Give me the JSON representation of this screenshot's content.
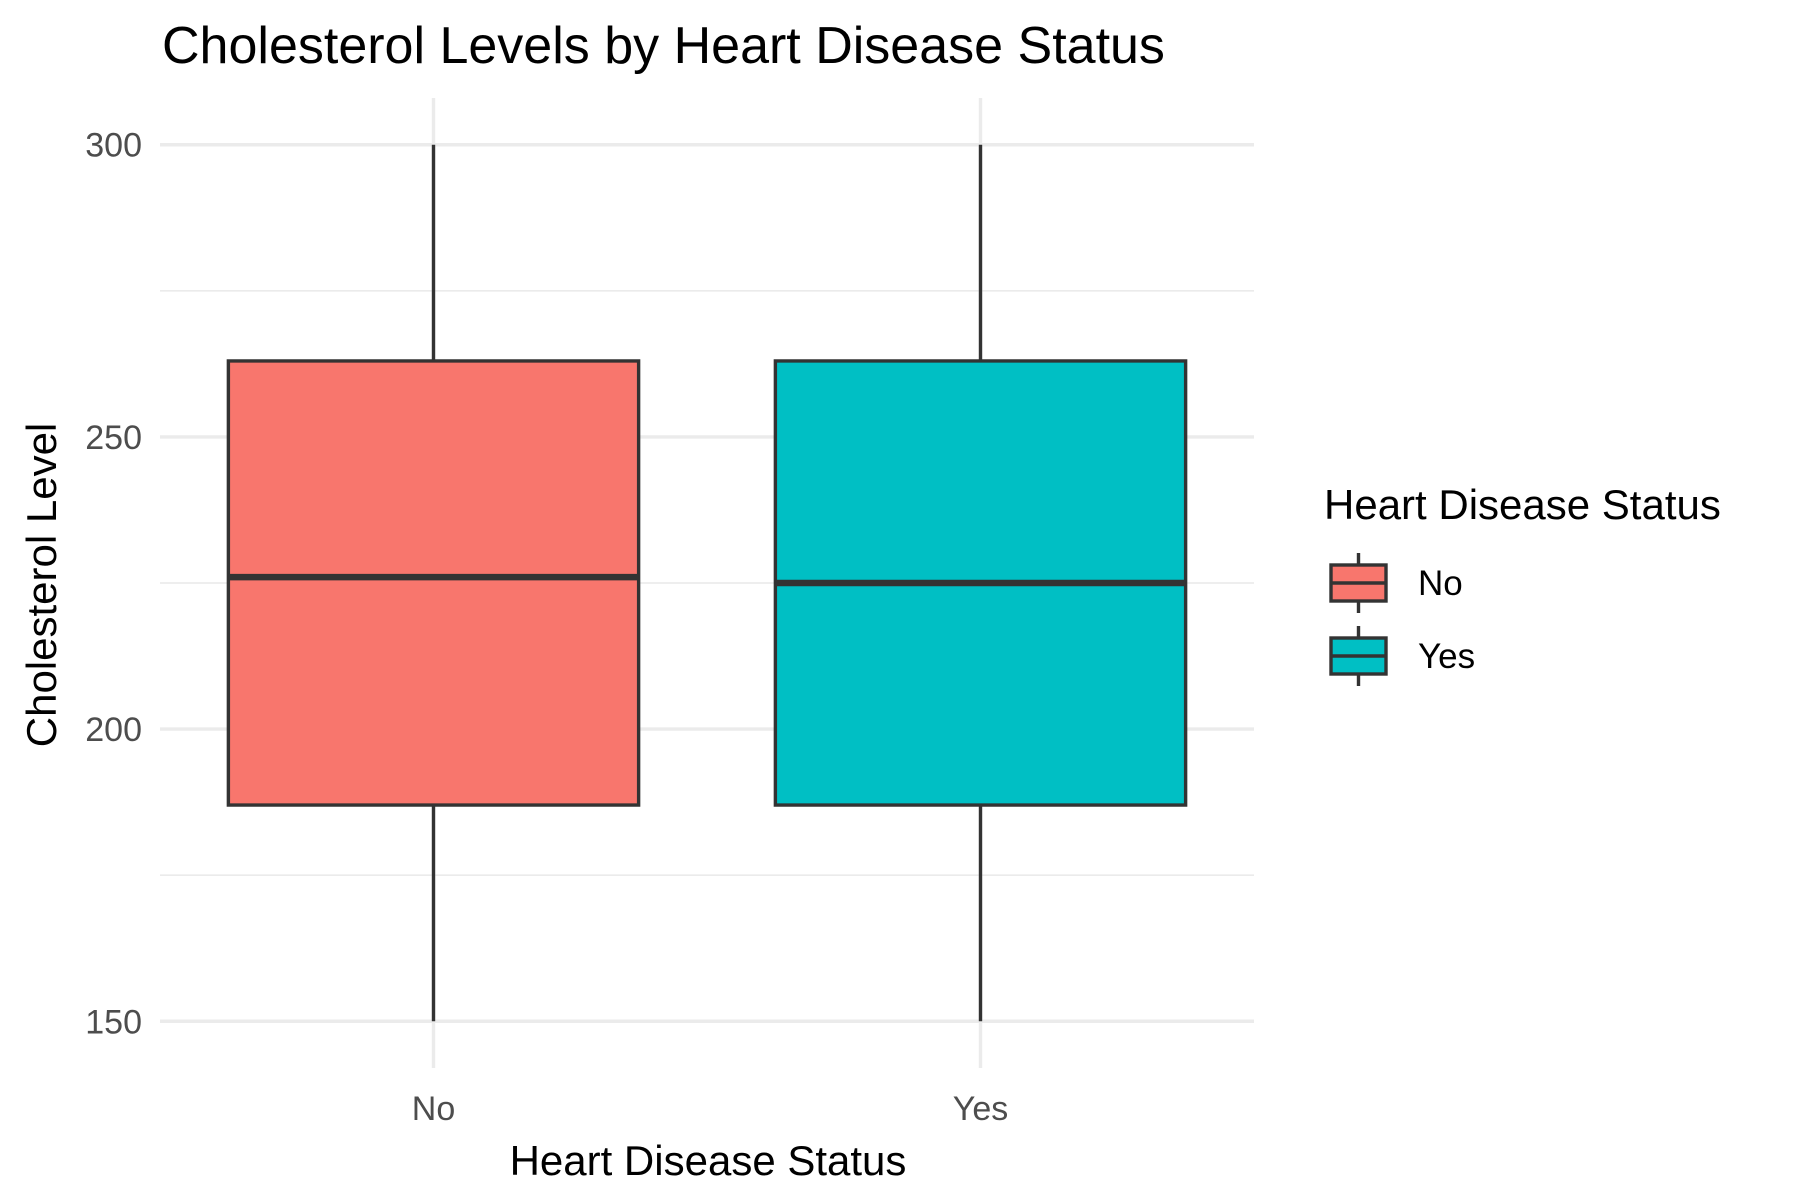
{
  "chart_data": {
    "type": "boxplot",
    "title": "Cholesterol Levels by Heart Disease Status",
    "xlabel": "Heart Disease Status",
    "ylabel": "Cholesterol Level",
    "ylim": [
      142,
      308
    ],
    "y_ticks": [
      150,
      200,
      250,
      300
    ],
    "y_minor_ticks": [
      175,
      225,
      275
    ],
    "grid": true,
    "categories": [
      "No",
      "Yes"
    ],
    "boxes": [
      {
        "category": "No",
        "min": 150,
        "q1": 187,
        "median": 226,
        "q3": 263,
        "max": 300,
        "color": "#F8766D"
      },
      {
        "category": "Yes",
        "min": 150,
        "q1": 187,
        "median": 225,
        "q3": 263,
        "max": 300,
        "color": "#00BFC4"
      }
    ],
    "legend": {
      "title": "Heart Disease Status",
      "position": "right",
      "entries": [
        {
          "label": "No",
          "color": "#F8766D"
        },
        {
          "label": "Yes",
          "color": "#00BFC4"
        }
      ]
    }
  }
}
